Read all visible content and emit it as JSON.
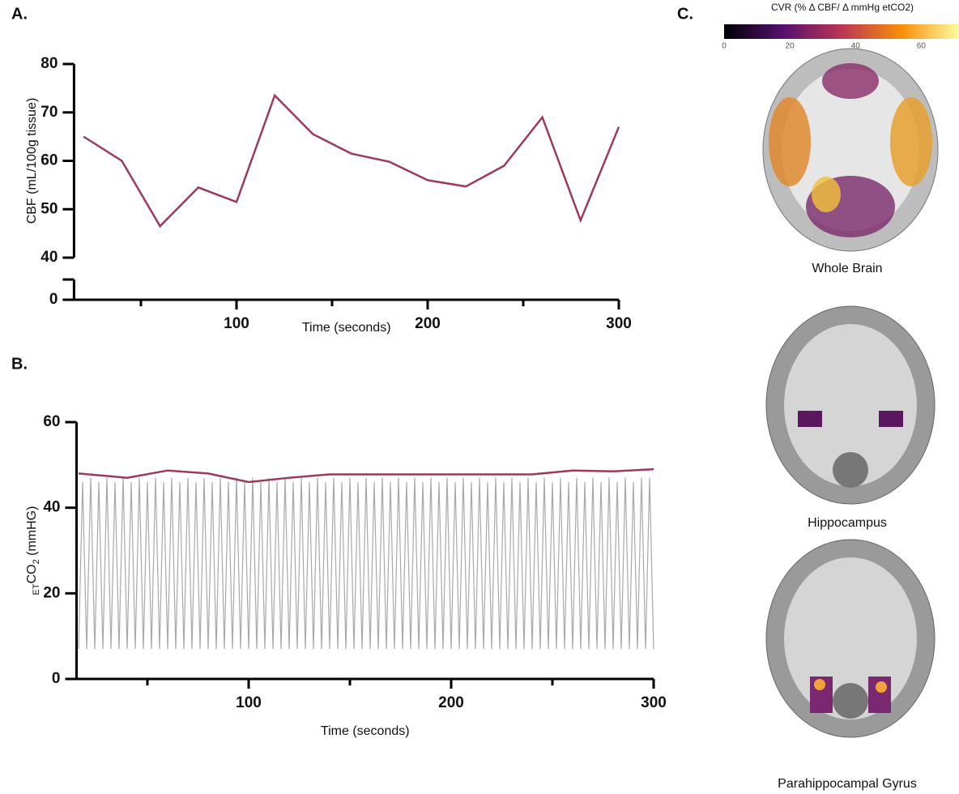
{
  "chart_data": [
    {
      "type": "line",
      "panel": "A.",
      "xlabel": "Time (seconds)",
      "ylabel": "CBF (mL/100g tissue)",
      "xlim": [
        15,
        300
      ],
      "xticks": [
        100,
        200,
        300
      ],
      "xminor": [
        50,
        150,
        250
      ],
      "ylim": [
        40,
        80
      ],
      "yticks": [
        40,
        50,
        60,
        70,
        80
      ],
      "ybreak_ticks": [
        0
      ],
      "series": [
        {
          "color": "#9b3b57",
          "x": [
            20,
            40,
            60,
            80,
            100,
            120,
            140,
            160,
            180,
            200,
            220,
            240,
            260,
            280,
            300
          ],
          "values": [
            65,
            60,
            46.5,
            54.5,
            51.5,
            73.5,
            65.5,
            61.5,
            59.8,
            56,
            54.7,
            59,
            69,
            47.7,
            67
          ]
        }
      ]
    },
    {
      "type": "line",
      "panel": "B.",
      "xlabel": "Time (seconds)",
      "ylabel": {
        "prefix": "ET",
        "main": "CO",
        "sub": "2",
        "suffix": " (mmHG)"
      },
      "xlim": [
        15,
        300
      ],
      "xticks": [
        100,
        200,
        300
      ],
      "xminor": [
        50,
        150,
        250
      ],
      "ylim": [
        0,
        60
      ],
      "yticks": [
        0,
        20,
        40,
        60
      ],
      "series": [
        {
          "color": "#a8a8a8",
          "x": [
            16,
            18,
            20,
            22,
            24,
            26,
            28,
            30,
            32,
            34,
            36,
            38,
            40,
            42,
            44,
            46,
            48,
            50,
            52,
            54,
            56,
            58,
            60,
            62,
            64,
            66,
            68,
            70,
            72,
            74,
            76,
            78,
            80,
            82,
            84,
            86,
            88,
            90,
            92,
            94,
            96,
            98,
            100,
            102,
            104,
            106,
            108,
            110,
            112,
            114,
            116,
            118,
            120,
            122,
            124,
            126,
            128,
            130,
            132,
            134,
            136,
            138,
            140,
            142,
            144,
            146,
            148,
            150,
            152,
            154,
            156,
            158,
            160,
            162,
            164,
            166,
            168,
            170,
            172,
            174,
            176,
            178,
            180,
            182,
            184,
            186,
            188,
            190,
            192,
            194,
            196,
            198,
            200,
            202,
            204,
            206,
            208,
            210,
            212,
            214,
            216,
            218,
            220,
            222,
            224,
            226,
            228,
            230,
            232,
            234,
            236,
            238,
            240,
            242,
            244,
            246,
            248,
            250,
            252,
            254,
            256,
            258,
            260,
            262,
            264,
            266,
            268,
            270,
            272,
            274,
            276,
            278,
            280,
            282,
            284,
            286,
            288,
            290,
            292,
            294,
            296,
            298,
            300
          ],
          "values": [
            7,
            46,
            7,
            47,
            7,
            46,
            7,
            47,
            7,
            46,
            7,
            47,
            7,
            46,
            7,
            47,
            7,
            46,
            7,
            47,
            7,
            46,
            7,
            47,
            7,
            46,
            7,
            47,
            7,
            46,
            7,
            47,
            7,
            46,
            7,
            47,
            7,
            46,
            7,
            47,
            7,
            46,
            7,
            47,
            7,
            46,
            7,
            47,
            7,
            46,
            7,
            47,
            7,
            46,
            7,
            47,
            7,
            46,
            7,
            47,
            7,
            46,
            7,
            47,
            7,
            46,
            7,
            47,
            7,
            46,
            7,
            47,
            7,
            46,
            7,
            47,
            7,
            46,
            7,
            47,
            7,
            46,
            7,
            47,
            7,
            46,
            7,
            47,
            7,
            46,
            7,
            47,
            7,
            46,
            7,
            47,
            7,
            46,
            7,
            47,
            7,
            46,
            7,
            47,
            7,
            46,
            7,
            47,
            7,
            46,
            7,
            47,
            7,
            46,
            7,
            47,
            7,
            46,
            7,
            47,
            7,
            46,
            7,
            47,
            7,
            46,
            7,
            47,
            7,
            46,
            7,
            47,
            7,
            46,
            7,
            47,
            7,
            46,
            7,
            47,
            7,
            47,
            7
          ]
        },
        {
          "color": "#9b3b57",
          "x": [
            16,
            40,
            60,
            80,
            100,
            120,
            140,
            160,
            180,
            200,
            220,
            240,
            260,
            280,
            300
          ],
          "values": [
            48,
            47,
            48.7,
            48,
            46,
            47,
            47.8,
            47.8,
            47.8,
            47.8,
            47.8,
            47.8,
            48.7,
            48.5,
            49
          ]
        }
      ]
    }
  ],
  "brain_panel": {
    "label": "C.",
    "colorbar": {
      "title": "CVR (% Δ  CBF/ Δ mmHg etCO2)",
      "lim": [
        0,
        72
      ],
      "ticks": [
        0,
        20,
        40,
        60
      ]
    },
    "images": [
      "Whole Brain",
      "Hippocampus",
      "Parahippocampal Gyrus"
    ]
  }
}
